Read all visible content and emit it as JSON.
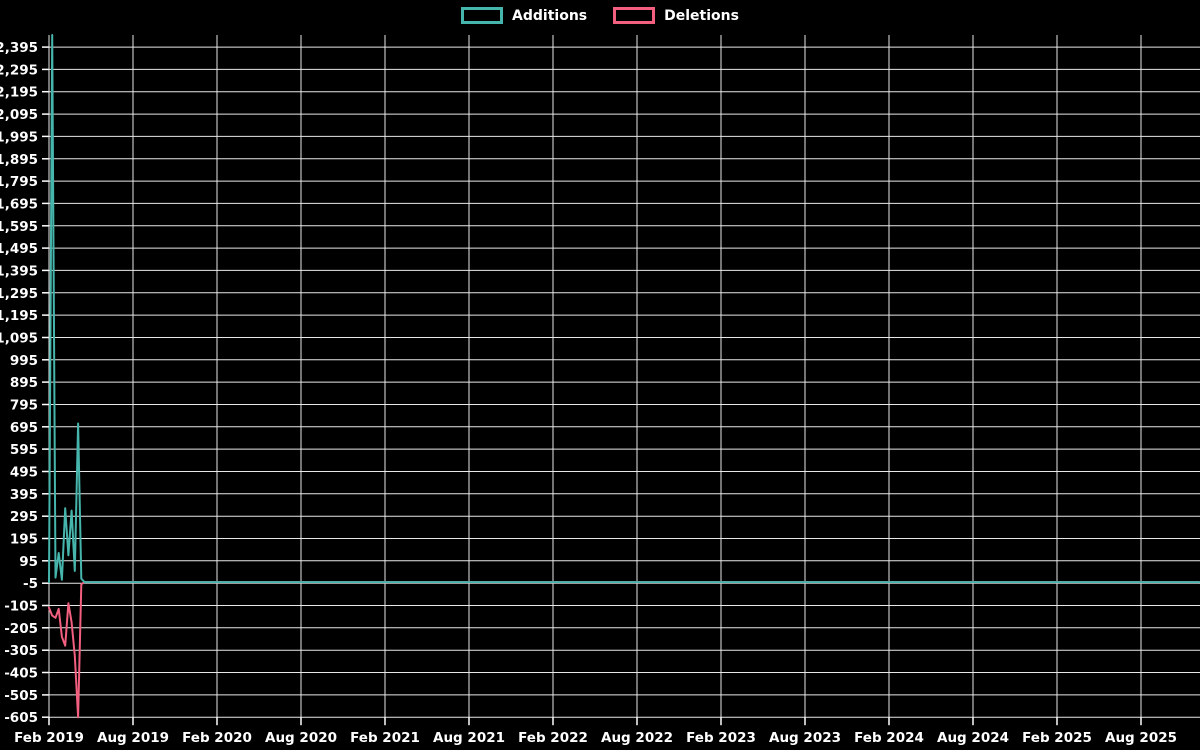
{
  "colors": {
    "additions": "#46b5ac",
    "deletions": "#f25f7f",
    "grid": "#e8e8e8",
    "background": "#000000",
    "text": "#ffffff"
  },
  "chart_data": {
    "type": "line",
    "title": "",
    "legend": [
      "Additions",
      "Deletions"
    ],
    "legend_position": "top-center",
    "grid": true,
    "x_axis": {
      "tick_labels": [
        "Feb 2019",
        "Aug 2019",
        "Feb 2020",
        "Aug 2020",
        "Feb 2021",
        "Aug 2021",
        "Feb 2022",
        "Aug 2022",
        "Feb 2023",
        "Aug 2023",
        "Feb 2024",
        "Aug 2024",
        "Feb 2025",
        "Aug 2025"
      ],
      "tick_interval_weeks": 26,
      "first_tick_week": 0
    },
    "y_axis": {
      "tick_min": -605,
      "tick_max": 2395,
      "tick_step": 100,
      "value_range": [
        -605,
        2449
      ]
    },
    "weeks_total": 357,
    "series": [
      {
        "name": "Additions",
        "color_key": "additions",
        "weekly_values_start": [
          0,
          2449,
          20,
          130,
          10,
          330,
          120,
          320,
          50,
          710,
          15
        ],
        "remaining_weeks_value": 0
      },
      {
        "name": "Deletions",
        "color_key": "deletions",
        "weekly_values_start": [
          -115,
          -150,
          -160,
          -120,
          -245,
          -285,
          -95,
          -180,
          -330,
          -605,
          -10
        ],
        "remaining_weeks_value": 0
      }
    ]
  }
}
